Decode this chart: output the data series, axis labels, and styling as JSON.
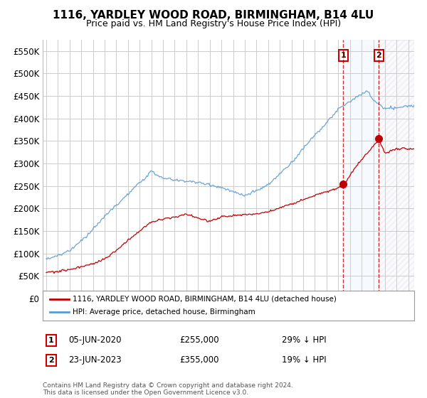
{
  "title": "1116, YARDLEY WOOD ROAD, BIRMINGHAM, B14 4LU",
  "subtitle": "Price paid vs. HM Land Registry's House Price Index (HPI)",
  "ylim": [
    0,
    575000
  ],
  "yticks": [
    0,
    50000,
    100000,
    150000,
    200000,
    250000,
    300000,
    350000,
    400000,
    450000,
    500000,
    550000
  ],
  "ytick_labels": [
    "£0",
    "£50K",
    "£100K",
    "£150K",
    "£200K",
    "£250K",
    "£300K",
    "£350K",
    "£400K",
    "£450K",
    "£500K",
    "£550K"
  ],
  "hpi_color": "#5b9bd5",
  "price_color": "#c00000",
  "marker1_date": 2020.43,
  "marker1_price": 255000,
  "marker1_label": "05-JUN-2020",
  "marker1_value": "£255,000",
  "marker1_note": "29% ↓ HPI",
  "marker2_date": 2023.48,
  "marker2_price": 355000,
  "marker2_label": "23-JUN-2023",
  "marker2_value": "£355,000",
  "marker2_note": "19% ↓ HPI",
  "legend_entry1": "1116, YARDLEY WOOD ROAD, BIRMINGHAM, B14 4LU (detached house)",
  "legend_entry2": "HPI: Average price, detached house, Birmingham",
  "annotation1_num": "1",
  "annotation2_num": "2",
  "footer": "Contains HM Land Registry data © Crown copyright and database right 2024.\nThis data is licensed under the Open Government Licence v3.0.",
  "background_color": "#ffffff",
  "grid_color": "#cccccc",
  "shade_color": "#ddeeff",
  "xlim_left": 1994.7,
  "xlim_right": 2026.5
}
